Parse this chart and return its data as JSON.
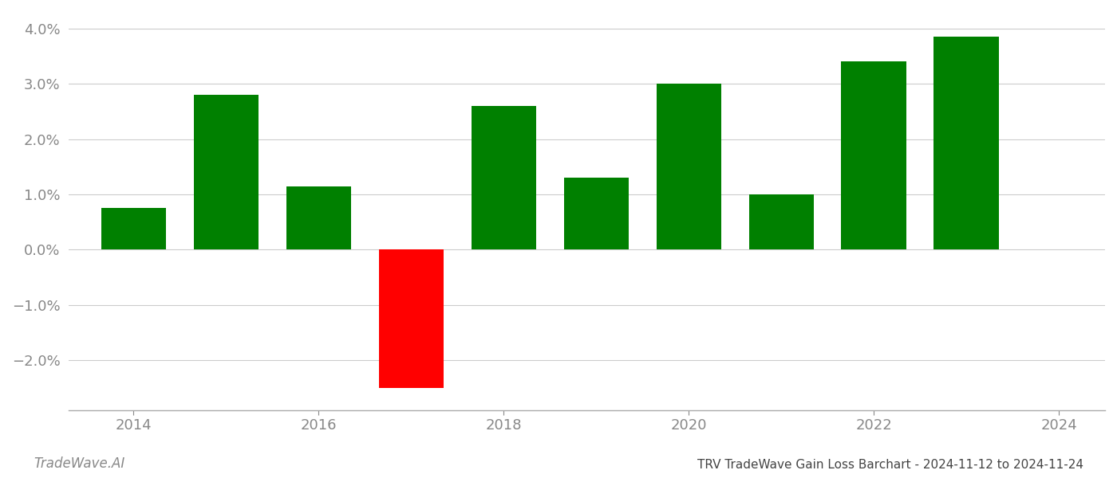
{
  "years": [
    2014,
    2015,
    2016,
    2017,
    2018,
    2019,
    2020,
    2021,
    2022,
    2023
  ],
  "values": [
    0.0075,
    0.028,
    0.0115,
    -0.025,
    0.026,
    0.013,
    0.03,
    0.01,
    0.034,
    0.0385
  ],
  "colors": [
    "#008000",
    "#008000",
    "#008000",
    "#ff0000",
    "#008000",
    "#008000",
    "#008000",
    "#008000",
    "#008000",
    "#008000"
  ],
  "title": "TRV TradeWave Gain Loss Barchart - 2024-11-12 to 2024-11-24",
  "watermark": "TradeWave.AI",
  "ylim": [
    -0.029,
    0.043
  ],
  "yticks": [
    -0.02,
    -0.01,
    0.0,
    0.01,
    0.02,
    0.03,
    0.04
  ],
  "xlim": [
    2013.3,
    2024.5
  ],
  "xticks": [
    2014,
    2016,
    2018,
    2020,
    2022,
    2024
  ],
  "background_color": "#ffffff",
  "grid_color": "#cccccc",
  "bar_width": 0.7,
  "axis_label_color": "#888888",
  "title_color": "#444444",
  "watermark_color": "#888888",
  "tick_fontsize": 13
}
